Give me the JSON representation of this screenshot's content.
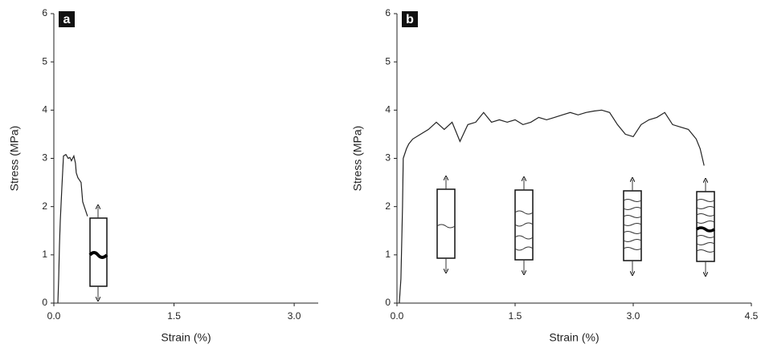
{
  "chart_data": [
    {
      "type": "line",
      "panel_label": "a",
      "xlabel": "Strain (%)",
      "ylabel": "Stress (MPa)",
      "color": "#222222",
      "x": [
        0.05,
        0.06,
        0.07,
        0.08,
        0.1,
        0.12,
        0.15,
        0.18,
        0.2,
        0.22,
        0.25,
        0.27,
        0.28,
        0.3,
        0.32,
        0.34,
        0.36,
        0.38,
        0.4,
        0.42
      ],
      "values": [
        0,
        0.5,
        1.2,
        1.7,
        2.4,
        3.05,
        3.08,
        3.0,
        3.02,
        2.95,
        3.05,
        2.9,
        2.7,
        2.6,
        2.55,
        2.5,
        2.1,
        2.0,
        1.9,
        1.8
      ],
      "xlim": [
        0,
        3.3
      ],
      "ylim": [
        0,
        6
      ],
      "xticks": [
        {
          "value": 0,
          "label": "0.0"
        },
        {
          "value": 1.5,
          "label": "1.5"
        },
        {
          "value": 3,
          "label": "3.0"
        }
      ],
      "yticks": [
        0,
        1,
        2,
        3,
        4,
        5,
        6
      ]
    },
    {
      "type": "line",
      "panel_label": "b",
      "xlabel": "Strain (%)",
      "ylabel": "Stress (MPa)",
      "color": "#222222",
      "x": [
        0.03,
        0.05,
        0.07,
        0.08,
        0.12,
        0.15,
        0.2,
        0.3,
        0.4,
        0.5,
        0.6,
        0.7,
        0.8,
        0.9,
        1.0,
        1.1,
        1.2,
        1.3,
        1.4,
        1.5,
        1.6,
        1.7,
        1.8,
        1.9,
        2.0,
        2.1,
        2.2,
        2.3,
        2.4,
        2.5,
        2.6,
        2.7,
        2.8,
        2.9,
        3.0,
        3.1,
        3.2,
        3.3,
        3.4,
        3.5,
        3.6,
        3.7,
        3.75,
        3.8,
        3.85,
        3.9
      ],
      "values": [
        0,
        0.5,
        2.0,
        3.0,
        3.2,
        3.3,
        3.4,
        3.5,
        3.6,
        3.75,
        3.6,
        3.75,
        3.35,
        3.7,
        3.75,
        3.95,
        3.75,
        3.8,
        3.75,
        3.8,
        3.7,
        3.75,
        3.85,
        3.8,
        3.85,
        3.9,
        3.95,
        3.9,
        3.95,
        3.98,
        4.0,
        3.95,
        3.7,
        3.5,
        3.45,
        3.7,
        3.8,
        3.85,
        3.95,
        3.7,
        3.65,
        3.6,
        3.5,
        3.4,
        3.2,
        2.85
      ],
      "xlim": [
        0,
        4.5
      ],
      "ylim": [
        0,
        6
      ],
      "xticks": [
        {
          "value": 0,
          "label": "0.0"
        },
        {
          "value": 1.5,
          "label": "1.5"
        },
        {
          "value": 3,
          "label": "3.0"
        },
        {
          "value": 4.5,
          "label": "4.5"
        }
      ],
      "yticks": [
        0,
        1,
        2,
        3,
        4,
        5,
        6
      ]
    }
  ]
}
